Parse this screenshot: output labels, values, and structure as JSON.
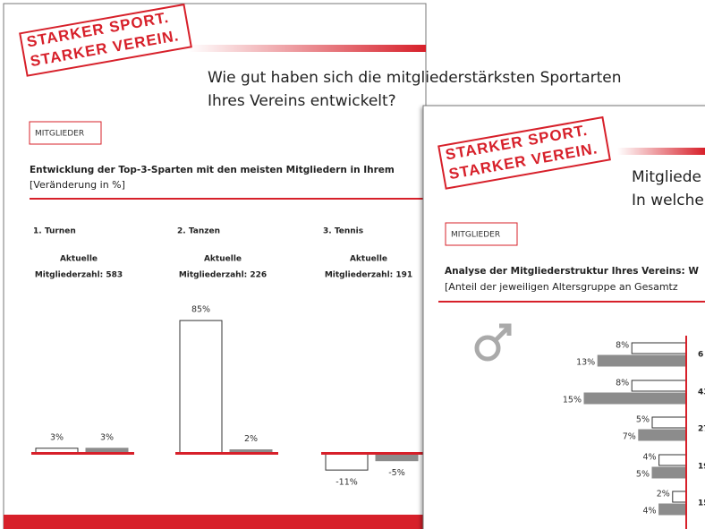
{
  "slides": [
    {
      "logo": [
        "STARKER SPORT.",
        "STARKER VEREIN."
      ],
      "title_lines": [
        "Wie gut haben sich die mitgliederstärksten Sportarten",
        "Ihres Vereins entwickelt?"
      ],
      "tag": "MITGLIEDER",
      "heading": "Entwicklung der Top-3-Sparten mit den meisten Mitgliedern in Ihrem",
      "subheading": "[Veränderung in %]",
      "groups": [
        {
          "name": "1. Turnen",
          "caption_lines": [
            "Aktuelle",
            "Mitgliederzahl: 583"
          ],
          "values": [
            3,
            3
          ],
          "value_labels": [
            "3%",
            "3%"
          ]
        },
        {
          "name": "2. Tanzen",
          "caption_lines": [
            "Aktuelle",
            "Mitgliederzahl: 226"
          ],
          "values": [
            85,
            2
          ],
          "value_labels": [
            "85%",
            "2%"
          ]
        },
        {
          "name": "3. Tennis",
          "caption_lines": [
            "Aktuelle",
            "Mitgliederzahl: 191"
          ],
          "values": [
            -11,
            -5
          ],
          "value_labels": [
            "-11%",
            "-5%"
          ]
        }
      ]
    },
    {
      "logo": [
        "STARKER SPORT.",
        "STARKER VEREIN."
      ],
      "title_lines": [
        "Mitgliede",
        "In welche"
      ],
      "tag": "MITGLIEDER",
      "heading": "Analyse der Mitgliederstruktur Ihres Vereins: W",
      "subheading": "[Anteil der jeweiligen Altersgruppe an Gesamtz",
      "rows": [
        {
          "values": [
            8,
            13
          ],
          "value_labels": [
            "8%",
            "13%"
          ],
          "right_label": "6"
        },
        {
          "values": [
            8,
            15
          ],
          "value_labels": [
            "8%",
            "15%"
          ],
          "right_label": "43"
        },
        {
          "values": [
            5,
            7
          ],
          "value_labels": [
            "5%",
            "7%"
          ],
          "right_label": "27"
        },
        {
          "values": [
            4,
            5
          ],
          "value_labels": [
            "4%",
            "5%"
          ],
          "right_label": "19"
        },
        {
          "values": [
            2,
            4
          ],
          "value_labels": [
            "2%",
            "4%"
          ],
          "right_label": "15"
        }
      ]
    }
  ]
}
